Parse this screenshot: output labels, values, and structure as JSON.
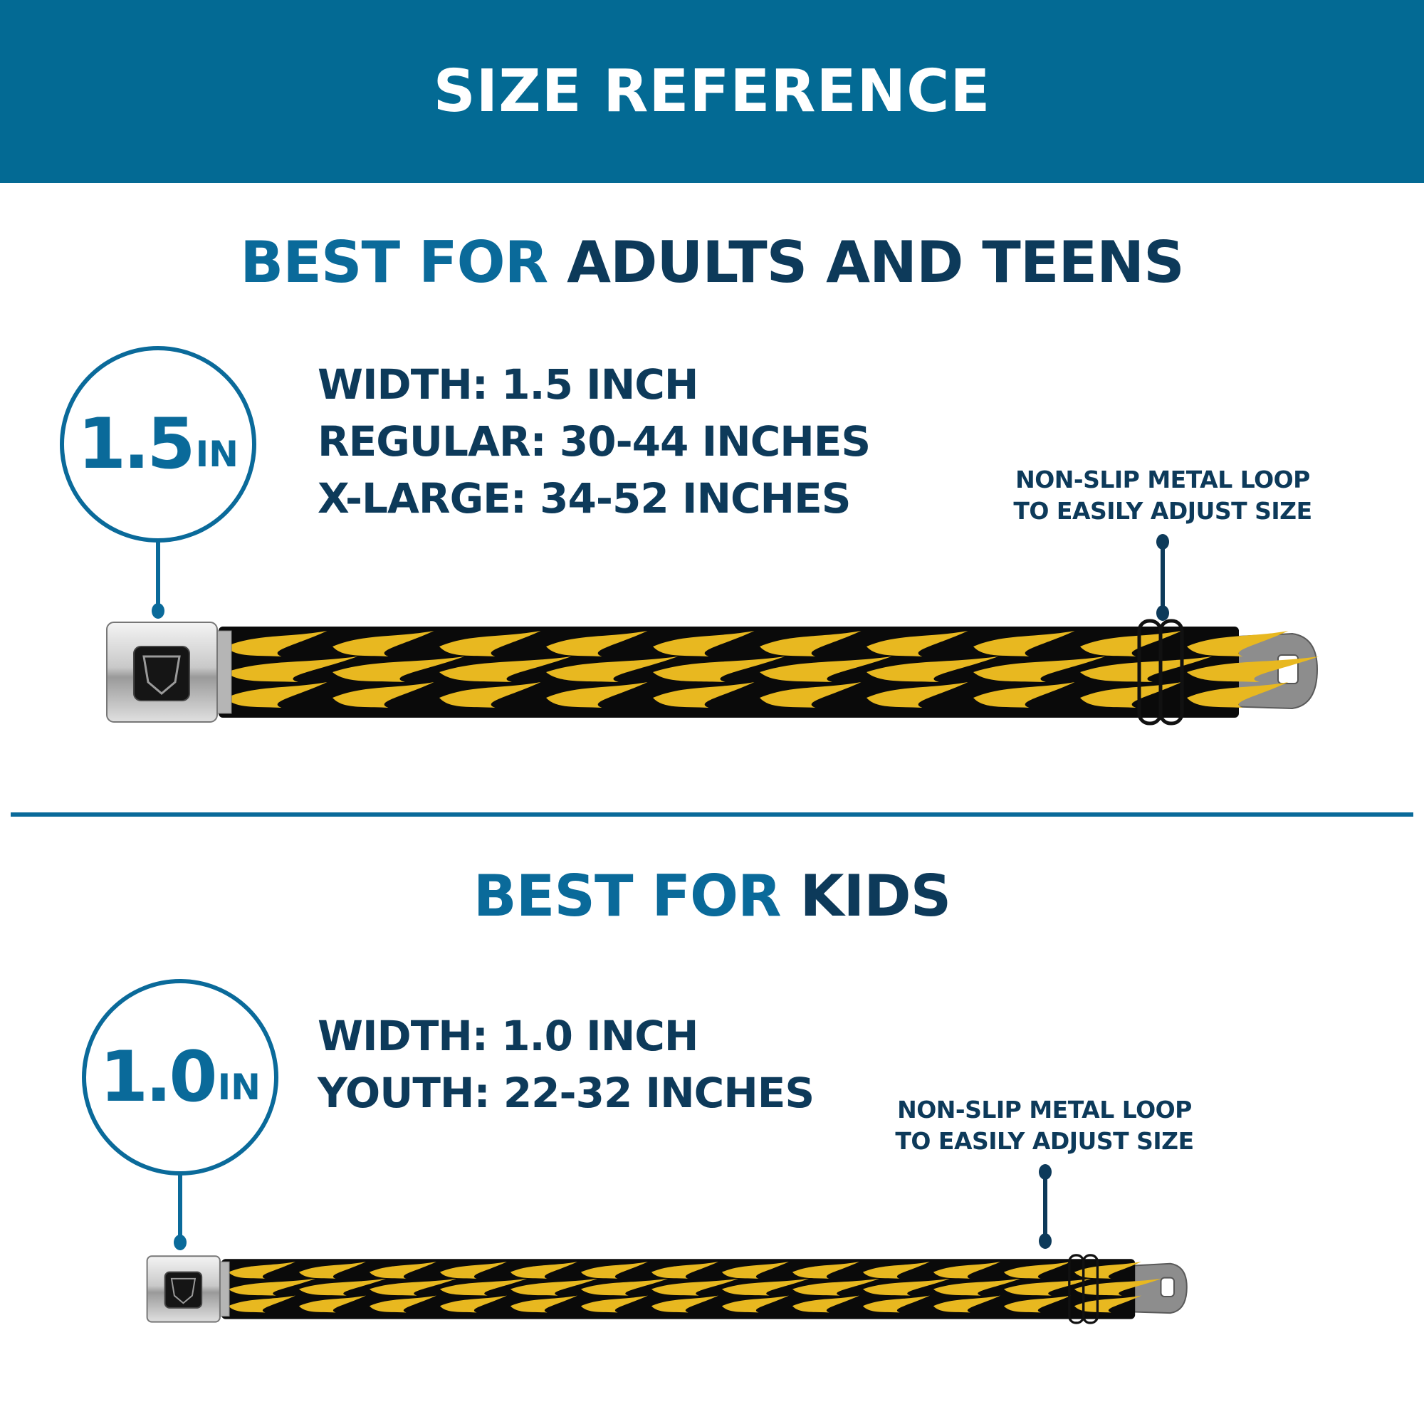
{
  "header": {
    "title": "SIZE REFERENCE"
  },
  "colors": {
    "header_bg": "#036a94",
    "accent_blue": "#0a6a9a",
    "navy": "#0d3a5a",
    "flame_yellow": "#e8b820",
    "strap_black": "#0a0a0a"
  },
  "adults": {
    "heading_accent": "BEST FOR",
    "heading_rest": "ADULTS AND TEENS",
    "badge_number": "1.5",
    "badge_unit": "IN",
    "specs": [
      "WIDTH: 1.5 INCH",
      "REGULAR: 30-44 INCHES",
      "X-LARGE: 34-52 INCHES"
    ],
    "callout": [
      "NON-SLIP METAL LOOP",
      "TO EASILY ADJUST SIZE"
    ],
    "buckle_logo": "BD"
  },
  "kids": {
    "heading_accent": "BEST FOR",
    "heading_rest": "KIDS",
    "badge_number": "1.0",
    "badge_unit": "IN",
    "specs": [
      "WIDTH: 1.0 INCH",
      "YOUTH: 22-32 INCHES"
    ],
    "callout": [
      "NON-SLIP METAL LOOP",
      "TO EASILY ADJUST SIZE"
    ],
    "buckle_logo": "BD"
  }
}
